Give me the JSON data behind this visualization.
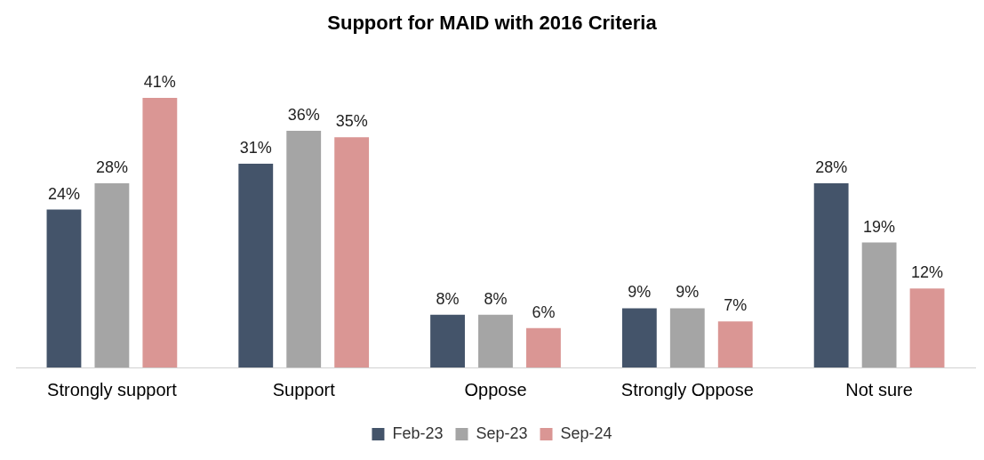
{
  "chart_data": {
    "type": "bar",
    "title": "Support for MAID with 2016 Criteria",
    "categories": [
      "Strongly support",
      "Support",
      "Oppose",
      "Strongly Oppose",
      "Not sure"
    ],
    "series": [
      {
        "name": "Feb-23",
        "color": "#44546a",
        "values": [
          24,
          31,
          8,
          9,
          28
        ],
        "value_labels": [
          "24%",
          "31%",
          "8%",
          "9%",
          "28%"
        ]
      },
      {
        "name": "Sep-23",
        "color": "#a5a5a5",
        "values": [
          28,
          36,
          8,
          9,
          19
        ],
        "value_labels": [
          "28%",
          "36%",
          "8%",
          "9%",
          "19%"
        ]
      },
      {
        "name": "Sep-24",
        "color": "#da9694",
        "values": [
          41,
          35,
          6,
          7,
          12
        ],
        "value_labels": [
          "41%",
          "35%",
          "6%",
          "7%",
          "12%"
        ]
      }
    ],
    "relative": false,
    "legend": "bottom",
    "grid": false
  }
}
